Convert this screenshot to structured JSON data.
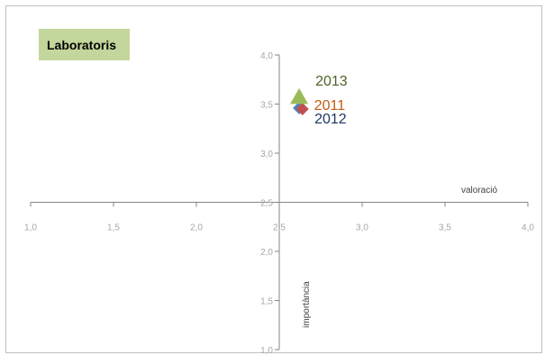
{
  "chart_data": {
    "type": "scatter",
    "title": "Laboratoris",
    "xlabel": "valoració",
    "ylabel": "importància",
    "xlim": [
      1.0,
      4.0
    ],
    "ylim": [
      1.0,
      4.0
    ],
    "axis_cross": {
      "x": 2.5,
      "y": 2.5
    },
    "x_ticks": [
      "1,0",
      "1,5",
      "2,0",
      "2,5",
      "3,0",
      "3,5",
      "4,0"
    ],
    "y_ticks": [
      "1,0",
      "1,5",
      "2,0",
      "2,5",
      "3,0",
      "3,5",
      "4,0"
    ],
    "grid": false,
    "legend": "none",
    "series": [
      {
        "name": "2012",
        "x": 2.62,
        "y": 3.46,
        "marker": "diamond",
        "color": "#4f81bd",
        "label_color": "#1f3864"
      },
      {
        "name": "2011",
        "x": 2.64,
        "y": 3.45,
        "marker": "diamond",
        "color": "#c0504d",
        "label_color": "#c55a11"
      },
      {
        "name": "2013",
        "x": 2.62,
        "y": 3.57,
        "marker": "triangle",
        "color": "#9bbb59",
        "label_color": "#4f6228"
      }
    ]
  }
}
